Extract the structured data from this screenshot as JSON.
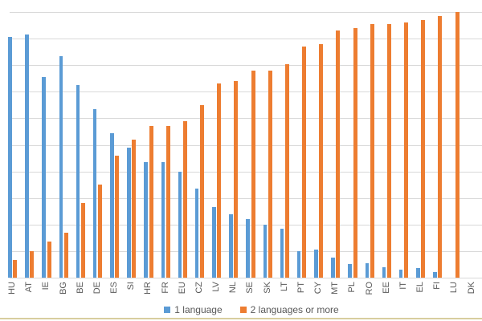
{
  "chart_data": {
    "type": "bar",
    "title": "",
    "xlabel": "",
    "ylabel": "",
    "ylim": [
      0,
      100
    ],
    "grid": "horizontal",
    "legend_position": "bottom-center",
    "categories": [
      "HU",
      "AT",
      "IE",
      "BG",
      "BE",
      "DE",
      "ES",
      "SI",
      "HR",
      "FR",
      "EU",
      "CZ",
      "LV",
      "NL",
      "SE",
      "SK",
      "LT",
      "PT",
      "CY",
      "MT",
      "PL",
      "RO",
      "EE",
      "IT",
      "EL",
      "FI",
      "LU",
      "DK"
    ],
    "series": [
      {
        "name": "1 language",
        "color": "#5B9BD5",
        "values": [
          90.5,
          91.5,
          75.5,
          83.5,
          72.5,
          63.5,
          54.5,
          49,
          43.5,
          43.5,
          40,
          33.5,
          26.5,
          24,
          22,
          20,
          18.5,
          10,
          10.5,
          7.5,
          5,
          5.5,
          4,
          3,
          3.5,
          2,
          0,
          null
        ]
      },
      {
        "name": "2 languages or more",
        "color": "#ED7D31",
        "values": [
          6.5,
          10,
          13.5,
          17,
          28,
          35,
          46,
          52,
          57,
          57,
          59,
          65,
          73,
          74,
          78,
          78,
          80.5,
          87,
          88,
          93,
          94,
          95.5,
          95.5,
          96,
          97,
          98.5,
          100,
          null
        ]
      }
    ]
  },
  "legend": {
    "items": [
      {
        "label": "1 language",
        "color": "#5B9BD5"
      },
      {
        "label": "2 languages or more",
        "color": "#ED7D31"
      }
    ]
  },
  "colors": {
    "gridline": "#D9D9D9",
    "axis_label": "#595959",
    "legend_text": "#595959",
    "background": "#FFFFFF",
    "bottom_border": "#D8CE9E"
  }
}
